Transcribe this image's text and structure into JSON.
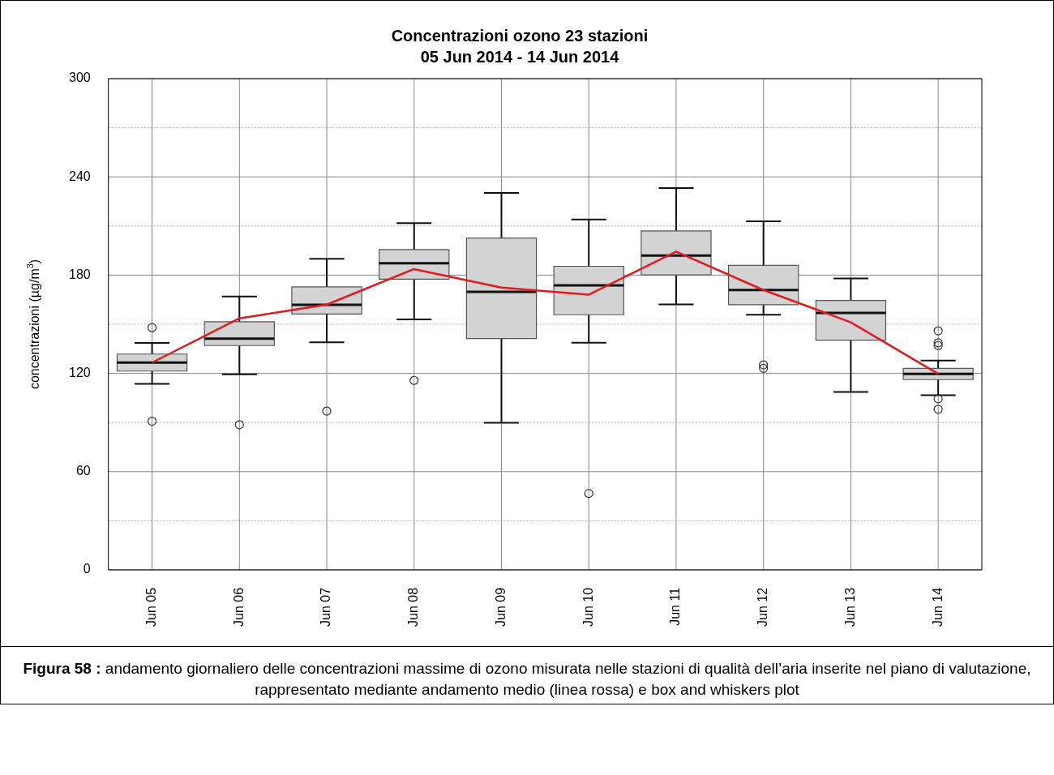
{
  "chart_data": {
    "type": "box",
    "title": "Concentrazioni ozono 23 stazioni",
    "subtitle": "05 Jun 2014 - 14 Jun 2014",
    "ylabel": "concentrazioni (µg/m$^{3}$)",
    "categories": [
      "Jun 05",
      "Jun 06",
      "Jun 07",
      "Jun 08",
      "Jun 09",
      "Jun 10",
      "Jun 11",
      "Jun 12",
      "Jun 13",
      "Jun 14"
    ],
    "boxes": [
      {
        "low": 113.6,
        "q1": 121.4,
        "median": 126.6,
        "q3": 131.8,
        "high": 138.6,
        "outliers": [
          147.9,
          90.8
        ]
      },
      {
        "low": 119.4,
        "q1": 137,
        "median": 141.2,
        "q3": 151.5,
        "high": 167,
        "outliers": [
          88.7
        ]
      },
      {
        "low": 139,
        "q1": 156.2,
        "median": 161.9,
        "q3": 172.8,
        "high": 190,
        "outliers": [
          97
        ]
      },
      {
        "low": 153,
        "q1": 177.5,
        "median": 187.3,
        "q3": 195.6,
        "high": 211.7,
        "outliers": [
          115.7
        ]
      },
      {
        "low": 89.8,
        "q1": 141.3,
        "median": 169.8,
        "q3": 202.7,
        "high": 230.2
      },
      {
        "low": 138.7,
        "q1": 155.8,
        "median": 173.8,
        "q3": 185.4,
        "high": 214,
        "outliers": [
          46.7
        ]
      },
      {
        "low": 162.1,
        "q1": 180.1,
        "median": 192,
        "q3": 207,
        "high": 233.2
      },
      {
        "low": 155.8,
        "q1": 161.9,
        "median": 170.9,
        "q3": 185.9,
        "high": 212.9,
        "outliers": [
          125.2,
          123.1
        ]
      },
      {
        "low": 108.6,
        "q1": 140.3,
        "median": 156.9,
        "q3": 164.5,
        "high": 178
      },
      {
        "low": 106.7,
        "q1": 116.2,
        "median": 119.7,
        "q3": 123.1,
        "high": 127.8,
        "outliers": [
          146,
          138.7,
          137,
          104.5,
          98.1
        ]
      }
    ],
    "series": [
      {
        "type": "line",
        "color": "#e41a1c",
        "values": [
          126.6,
          153.6,
          162,
          183.7,
          172.4,
          168.1,
          194.4,
          170.9,
          151.2,
          119.7
        ]
      }
    ],
    "color": "#d3d3d3",
    "marker": "none",
    "line_style": "solid",
    "ylim": [
      0,
      300
    ],
    "yticks": [
      0,
      {
        "value": 30,
        "label": null
      },
      60,
      {
        "value": 90,
        "label": null
      },
      120,
      {
        "value": 150,
        "label": null
      },
      180,
      {
        "value": 210,
        "label": null
      },
      240,
      {
        "value": 270,
        "label": null
      },
      300
    ],
    "grid": true,
    "annotations": [
      "Figura 58 :",
      "andamento giornaliero delle concentrazioni massime di ozono misurata nelle stazioni di qualità dell’aria inserite nel piano di valutazione, rappresentato mediante andamento medio (linea rossa) e box and whiskers plot"
    ]
  }
}
